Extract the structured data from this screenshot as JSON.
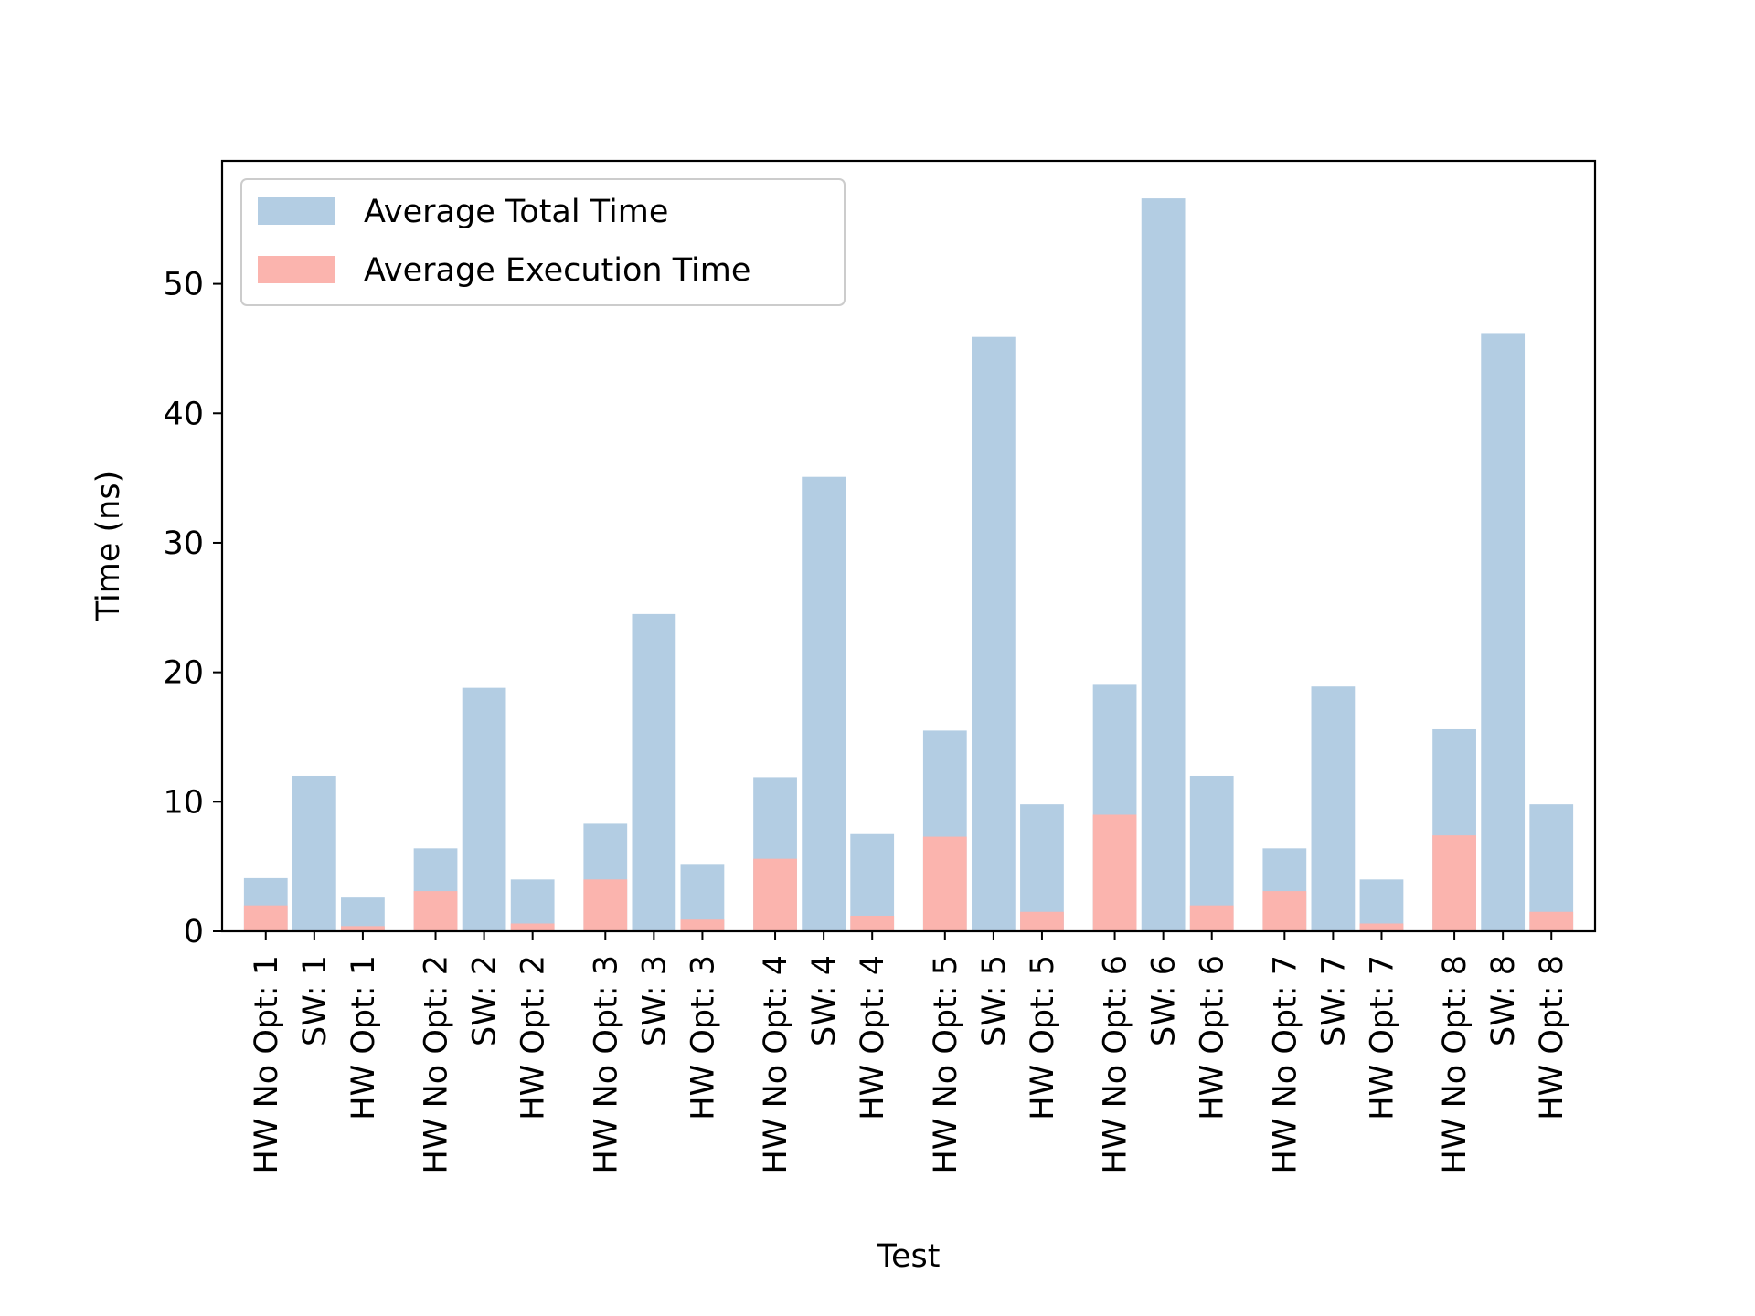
{
  "chart_data": {
    "type": "bar",
    "xlabel": "Test",
    "ylabel": "Time (ns)",
    "ylim": [
      0,
      59.5
    ],
    "yticks": [
      0,
      10,
      20,
      30,
      40,
      50
    ],
    "grid": false,
    "legend_position": "top-left",
    "categories": [
      "HW No Opt: 1",
      "SW: 1",
      "HW Opt: 1",
      "HW No Opt: 2",
      "SW: 2",
      "HW Opt: 2",
      "HW No Opt: 3",
      "SW: 3",
      "HW Opt: 3",
      "HW No Opt: 4",
      "SW: 4",
      "HW Opt: 4",
      "HW No Opt: 5",
      "SW: 5",
      "HW Opt: 5",
      "HW No Opt: 6",
      "SW: 6",
      "HW Opt: 6",
      "HW No Opt: 7",
      "SW: 7",
      "HW Opt: 7",
      "HW No Opt: 8",
      "SW: 8",
      "HW Opt: 8"
    ],
    "x": [
      1,
      2,
      3,
      4.5,
      5.5,
      6.5,
      8,
      9,
      10,
      11.5,
      12.5,
      13.5,
      15,
      16,
      17,
      18.5,
      19.5,
      20.5,
      22,
      23,
      24,
      25.5,
      26.5,
      27.5
    ],
    "series": [
      {
        "name": "Average Total Time",
        "color": "#b3cde3",
        "values": [
          4.1,
          12.0,
          2.6,
          6.4,
          18.8,
          4.0,
          8.3,
          24.5,
          5.2,
          11.9,
          35.1,
          7.5,
          15.5,
          45.9,
          9.8,
          19.1,
          56.6,
          12.0,
          6.4,
          18.9,
          4.0,
          15.6,
          46.2,
          9.8
        ]
      },
      {
        "name": "Average Execution Time",
        "color": "#fbb4ae",
        "values": [
          2.0,
          0.0,
          0.4,
          3.1,
          0.0,
          0.6,
          4.0,
          0.0,
          0.9,
          5.6,
          0.0,
          1.2,
          7.3,
          0.0,
          1.5,
          9.0,
          0.0,
          2.0,
          3.1,
          0.0,
          0.6,
          7.4,
          0.0,
          1.5
        ]
      }
    ]
  }
}
